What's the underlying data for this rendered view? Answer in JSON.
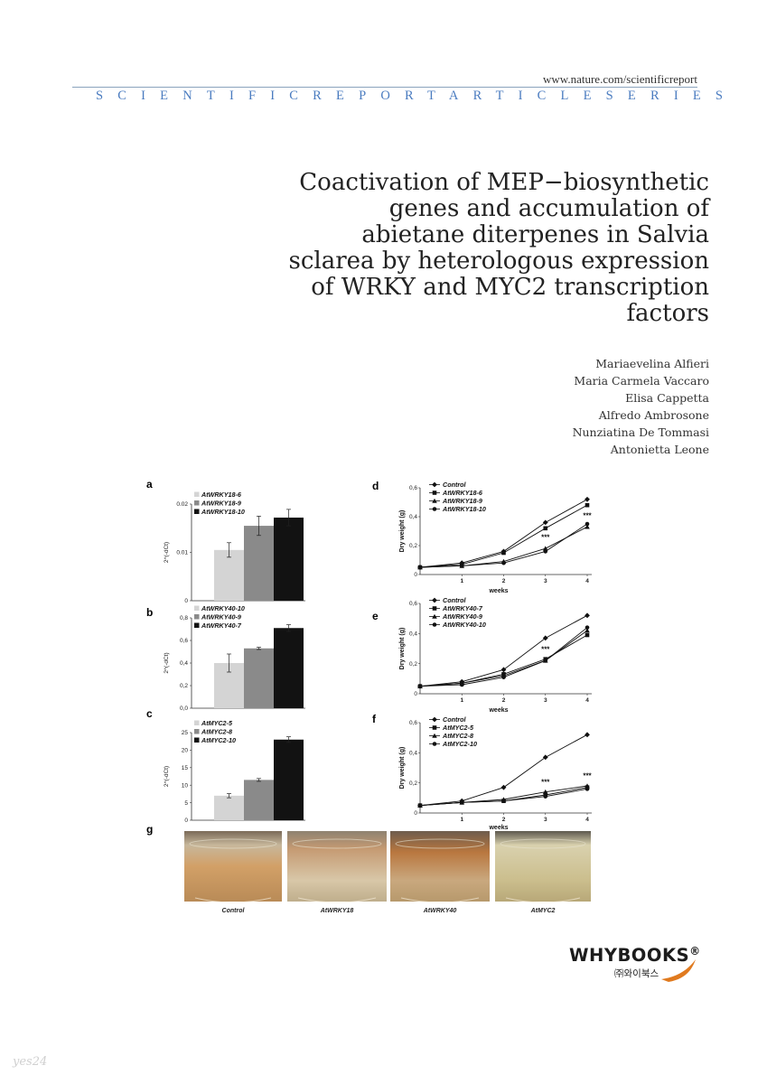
{
  "header": {
    "url": "www.nature.com/scientificreport",
    "series": "SCIENTIFICREPORTARTICLESERIES"
  },
  "title_lines": [
    "Coactivation of MEP−biosynthetic",
    "genes and accumulation of",
    "abietane diterpenes in Salvia",
    "sclarea by heterologous expression",
    "of WRKY and MYC2 transcription",
    "factors"
  ],
  "authors": [
    "Mariaevelina Alfieri",
    "Maria Carmela Vaccaro",
    "Elisa Cappetta",
    "Alfredo Ambrosone",
    "Nunziatina De Tommasi",
    "Antonietta Leone"
  ],
  "colors": {
    "bar_light": "#d4d4d4",
    "bar_mid": "#8a8a8a",
    "bar_dark": "#121212",
    "series_blue": "#4b7cc0"
  },
  "chart_data": [
    {
      "panel": "a",
      "type": "bar",
      "ylabel": "2^(-dCt)",
      "yticks": [
        "0",
        "0.01",
        "0.02"
      ],
      "ylim": [
        0,
        0.02
      ],
      "series": [
        {
          "name": "AtWRKY18-6",
          "value": 0.0105,
          "error": 0.0015
        },
        {
          "name": "AtWRKY18-9",
          "value": 0.0155,
          "error": 0.002
        },
        {
          "name": "AtWRKY18-10",
          "value": 0.0172,
          "error": 0.0017
        }
      ]
    },
    {
      "panel": "b",
      "type": "bar",
      "ylabel": "2^(-dCt)",
      "yticks": [
        "0,0",
        "0,2",
        "0,4",
        "0,6",
        "0,8"
      ],
      "ylim": [
        0,
        0.8
      ],
      "series": [
        {
          "name": "AtWRKY40-10",
          "value": 0.4,
          "error": 0.08
        },
        {
          "name": "AtWRKY40-9",
          "value": 0.53,
          "error": 0.01
        },
        {
          "name": "AtWRKY40-7",
          "value": 0.71,
          "error": 0.03
        }
      ]
    },
    {
      "panel": "c",
      "type": "bar",
      "ylabel": "2^(-dCt)",
      "yticks": [
        "0",
        "5",
        "10",
        "15",
        "20",
        "25"
      ],
      "ylim": [
        0,
        25
      ],
      "series": [
        {
          "name": "AtMYC2-5",
          "value": 7.0,
          "error": 0.6
        },
        {
          "name": "AtMYC2-8",
          "value": 11.5,
          "error": 0.4
        },
        {
          "name": "AtMYC2-10",
          "value": 23.0,
          "error": 0.8
        }
      ]
    },
    {
      "panel": "d",
      "type": "line",
      "xlabel": "weeks",
      "ylabel": "Dry weight (g)",
      "x": [
        0,
        1,
        2,
        3,
        4
      ],
      "xticks": [
        "1",
        "2",
        "3",
        "4"
      ],
      "yticks": [
        "0",
        "0,2",
        "0,4",
        "0,6"
      ],
      "ylim": [
        0,
        0.6
      ],
      "series": [
        {
          "name": "Control",
          "values": [
            0.05,
            0.08,
            0.16,
            0.36,
            0.52
          ]
        },
        {
          "name": "AtWRKY18-6",
          "values": [
            0.05,
            0.07,
            0.15,
            0.32,
            0.48
          ]
        },
        {
          "name": "AtWRKY18-9",
          "values": [
            0.05,
            0.06,
            0.09,
            0.18,
            0.33
          ]
        },
        {
          "name": "AtWRKY18-10",
          "values": [
            0.05,
            0.06,
            0.08,
            0.16,
            0.35
          ]
        }
      ],
      "annotations": [
        {
          "x": 3,
          "y": 0.24,
          "text": "***"
        },
        {
          "x": 4,
          "y": 0.39,
          "text": "***"
        }
      ]
    },
    {
      "panel": "e",
      "type": "line",
      "xlabel": "weeks",
      "ylabel": "Dry weight (g)",
      "x": [
        0,
        1,
        2,
        3,
        4
      ],
      "xticks": [
        "1",
        "2",
        "3",
        "4"
      ],
      "yticks": [
        "0",
        "0,2",
        "0,4",
        "0,6"
      ],
      "ylim": [
        0,
        0.6
      ],
      "series": [
        {
          "name": "Control",
          "values": [
            0.05,
            0.08,
            0.16,
            0.37,
            0.52
          ]
        },
        {
          "name": "AtWRKY40-7",
          "values": [
            0.05,
            0.07,
            0.13,
            0.23,
            0.39
          ]
        },
        {
          "name": "AtWRKY40-9",
          "values": [
            0.05,
            0.07,
            0.12,
            0.22,
            0.42
          ]
        },
        {
          "name": "AtWRKY40-10",
          "values": [
            0.05,
            0.06,
            0.11,
            0.22,
            0.44
          ]
        }
      ],
      "annotations": [
        {
          "x": 3,
          "y": 0.28,
          "text": "***"
        }
      ]
    },
    {
      "panel": "f",
      "type": "line",
      "xlabel": "weeks",
      "ylabel": "Dry weight (g)",
      "x": [
        0,
        1,
        2,
        3,
        4
      ],
      "xticks": [
        "1",
        "2",
        "3",
        "4"
      ],
      "yticks": [
        "0",
        "0,2",
        "0,4",
        "0,6"
      ],
      "ylim": [
        0,
        0.6
      ],
      "series": [
        {
          "name": "Control",
          "values": [
            0.05,
            0.08,
            0.17,
            0.37,
            0.52
          ]
        },
        {
          "name": "AtMYC2-5",
          "values": [
            0.05,
            0.07,
            0.08,
            0.12,
            0.17
          ]
        },
        {
          "name": "AtMYC2-8",
          "values": [
            0.05,
            0.07,
            0.09,
            0.14,
            0.18
          ]
        },
        {
          "name": "AtMYC2-10",
          "values": [
            0.05,
            0.07,
            0.08,
            0.11,
            0.16
          ]
        }
      ],
      "annotations": [
        {
          "x": 3,
          "y": 0.19,
          "text": "***"
        },
        {
          "x": 4,
          "y": 0.23,
          "text": "***"
        }
      ]
    }
  ],
  "photos": {
    "panel": "g",
    "labels": [
      "Control",
      "AtWRKY18",
      "AtWRKY40",
      "AtMYC2"
    ]
  },
  "publisher": {
    "name": "WHYBOOKS",
    "reg": "®",
    "korean": "㈜와이북스"
  },
  "watermark": "yes24"
}
